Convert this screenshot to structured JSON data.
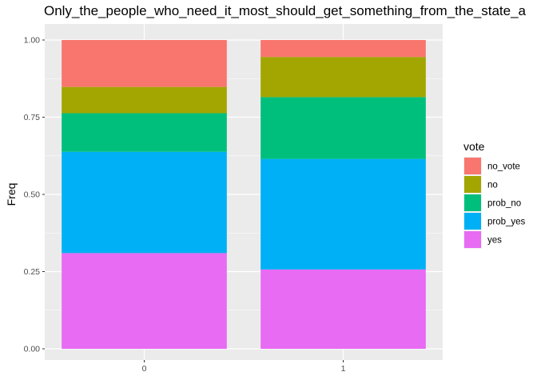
{
  "chart_data": {
    "type": "bar",
    "stacked": true,
    "title": "Only_the_people_who_need_it_most_should_get_something_from_the_state_a",
    "xlabel": "",
    "ylabel": "Freq",
    "categories": [
      "0",
      "1"
    ],
    "ylim": [
      0,
      1
    ],
    "yticks": [
      "0.00",
      "0.25",
      "0.50",
      "0.75",
      "1.00"
    ],
    "grid": true,
    "legend": {
      "title": "vote",
      "position": "right"
    },
    "series": [
      {
        "name": "no_vote",
        "color": "#F8766D",
        "values": [
          0.152,
          0.055
        ]
      },
      {
        "name": "no",
        "color": "#A3A500",
        "values": [
          0.085,
          0.13
        ]
      },
      {
        "name": "prob_no",
        "color": "#00BF7D",
        "values": [
          0.125,
          0.2
        ]
      },
      {
        "name": "prob_yes",
        "color": "#00B0F6",
        "values": [
          0.328,
          0.358
        ]
      },
      {
        "name": "yes",
        "color": "#E76BF3",
        "values": [
          0.31,
          0.257
        ]
      }
    ],
    "panel_background": "#EBEBEB",
    "grid_color": "#FFFFFF"
  }
}
